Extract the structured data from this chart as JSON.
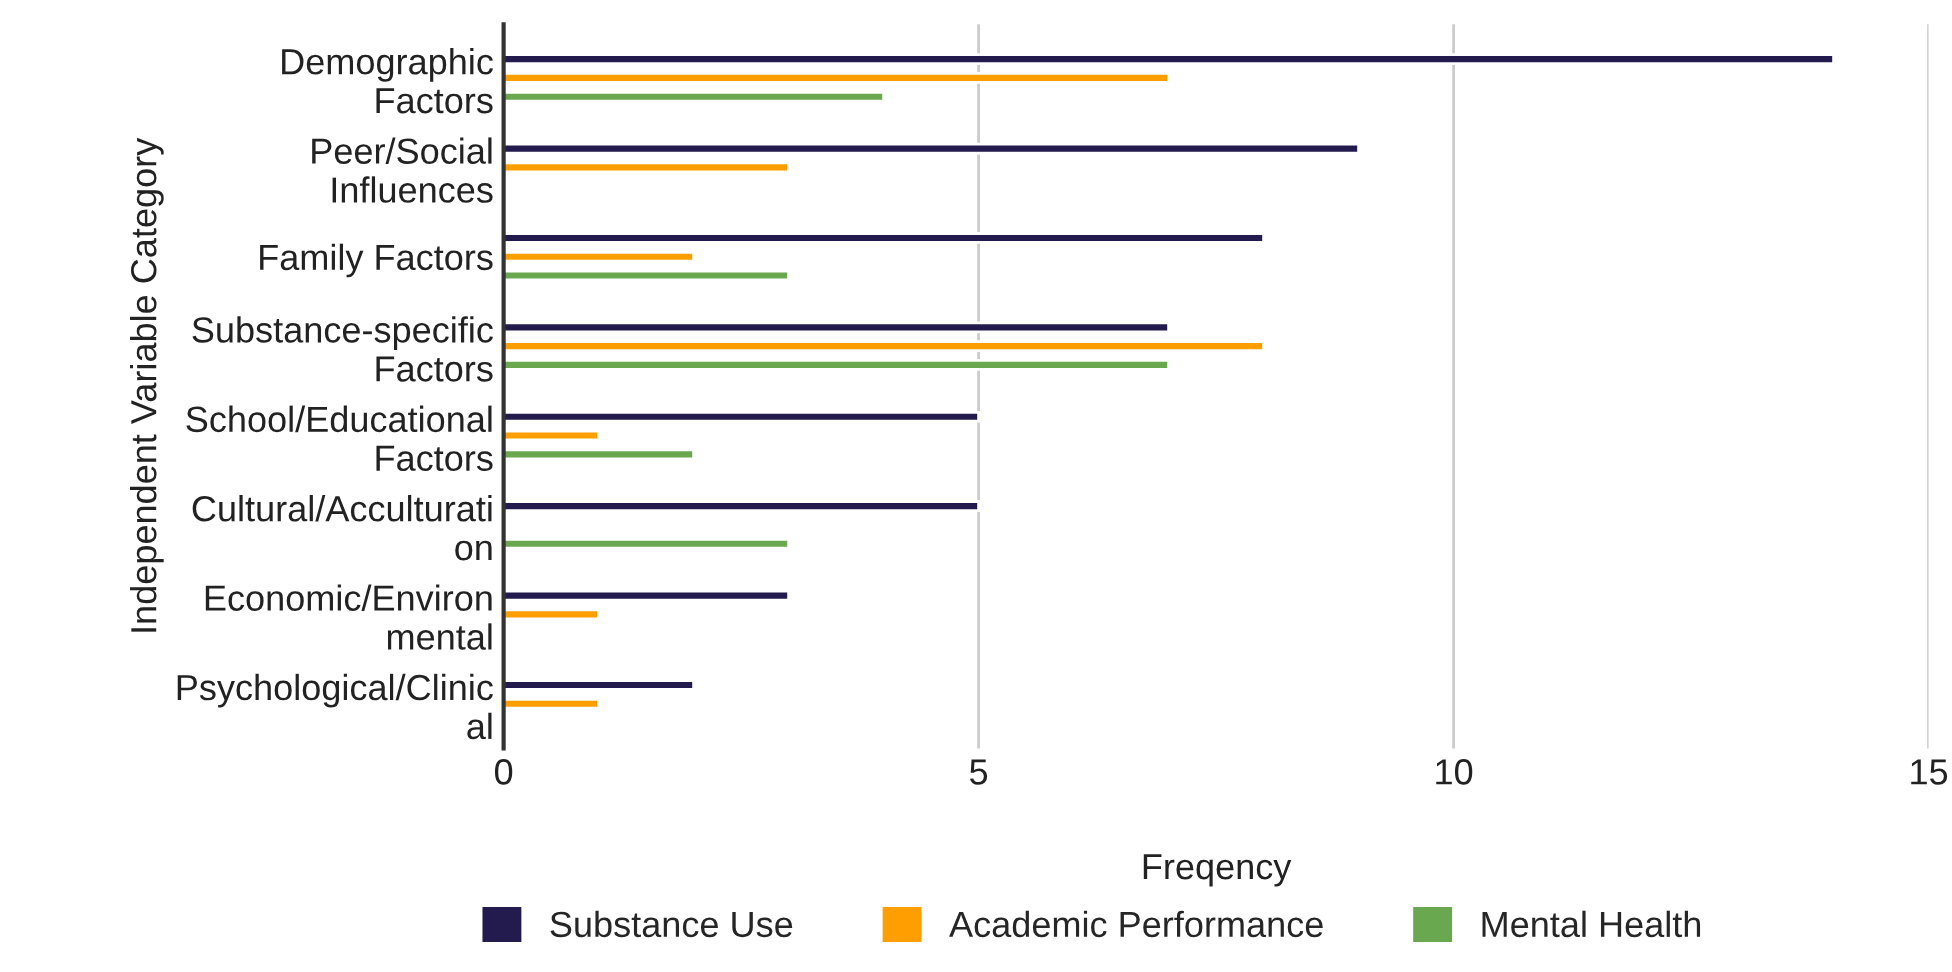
{
  "chart_data": {
    "type": "bar",
    "orientation": "horizontal",
    "categories": [
      "Demographic\nFactors",
      "Peer/Social\nInfluences",
      "Family Factors",
      "Substance-specific\nFactors",
      "School/Educational\nFactors",
      "Cultural/Acculturati\non",
      "Economic/Environ\nmental",
      "Psychological/Clinic\nal"
    ],
    "series": [
      {
        "name": "Substance Use",
        "color": "#231b4d",
        "values": [
          14,
          9,
          8,
          7,
          5,
          5,
          3,
          2
        ]
      },
      {
        "name": "Academic Performance",
        "color": "#ff9e00",
        "values": [
          7,
          3,
          2,
          8,
          1,
          null,
          1,
          1
        ]
      },
      {
        "name": "Mental Health",
        "color": "#6aa84f",
        "values": [
          4,
          null,
          3,
          7,
          2,
          3,
          null,
          null
        ]
      }
    ],
    "xlabel": "Freqency",
    "ylabel": "Independent Variable Category",
    "xlim": [
      0,
      15
    ],
    "xticks": [
      0,
      5,
      10,
      15
    ],
    "grid": "x",
    "legend": "bottom"
  }
}
